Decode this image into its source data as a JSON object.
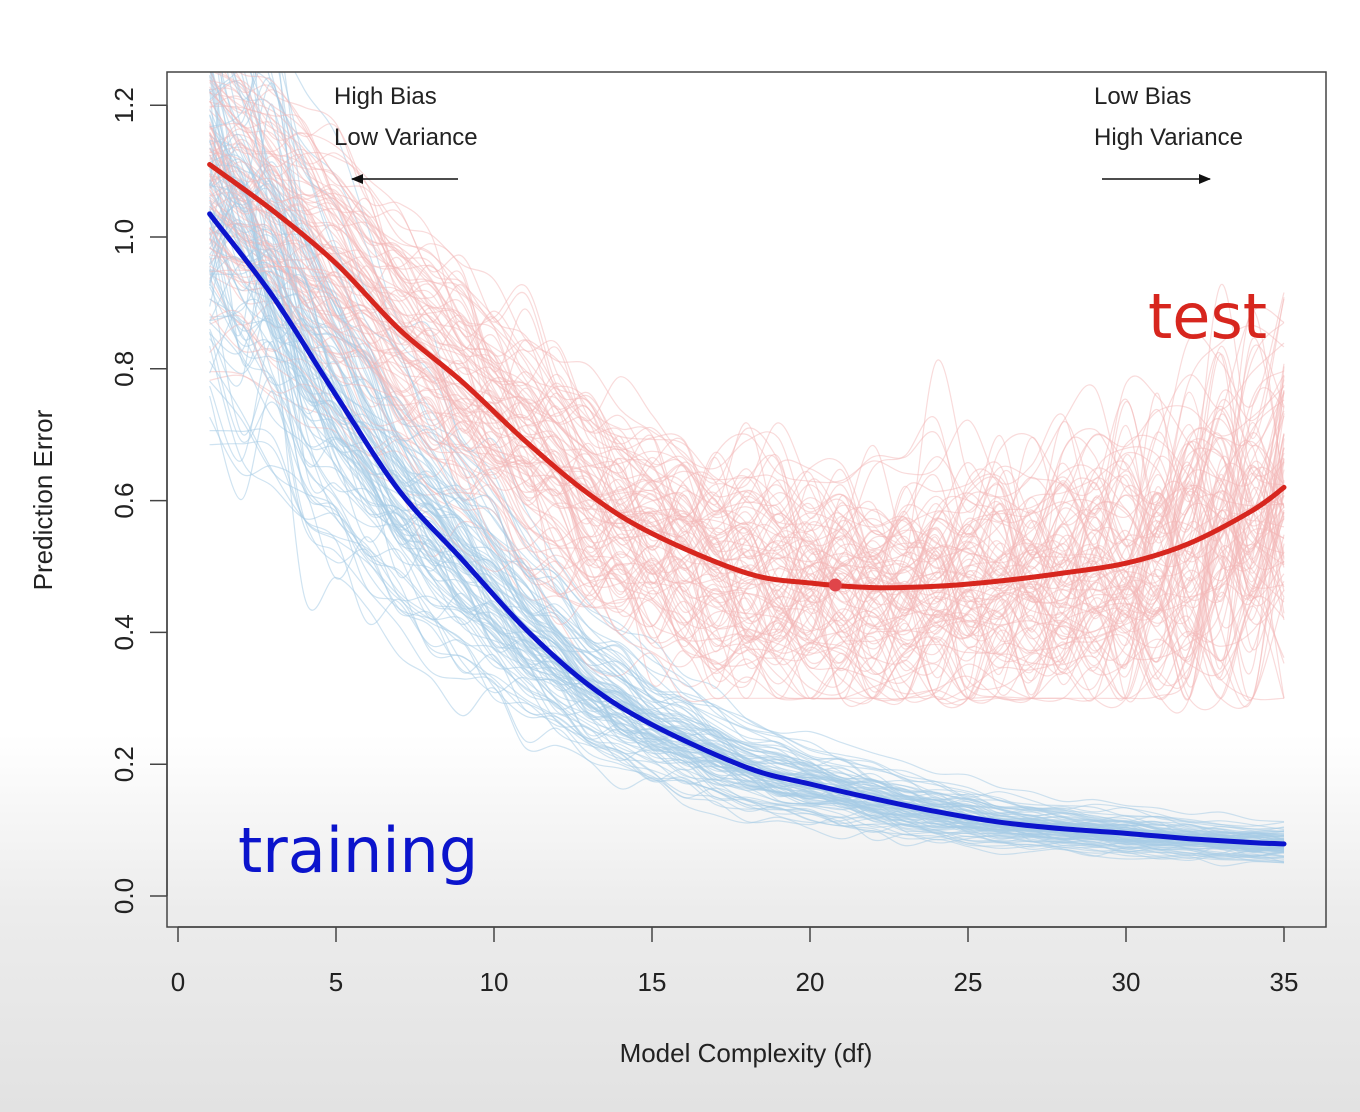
{
  "chart_data": {
    "type": "line",
    "xlabel": "Model Complexity (df)",
    "ylabel": "Prediction Error",
    "xlim": [
      0,
      35
    ],
    "ylim": [
      0,
      1.2
    ],
    "x_ticks": [
      "0",
      "5",
      "10",
      "15",
      "20",
      "25",
      "30",
      "35"
    ],
    "y_ticks": [
      "0.0",
      "0.2",
      "0.4",
      "0.6",
      "0.8",
      "1.0",
      "1.2"
    ],
    "x": [
      1,
      3,
      5,
      7,
      9,
      11,
      13,
      15,
      18,
      20,
      22,
      24,
      26,
      28,
      30,
      32,
      34,
      35
    ],
    "series": [
      {
        "name": "test",
        "color": "#d7261e",
        "values": [
          1.11,
          1.04,
          0.96,
          0.86,
          0.78,
          0.69,
          0.61,
          0.55,
          0.49,
          0.475,
          0.468,
          0.47,
          0.478,
          0.49,
          0.505,
          0.535,
          0.585,
          0.62
        ]
      },
      {
        "name": "training",
        "color": "#0b14cc",
        "values": [
          1.035,
          0.91,
          0.76,
          0.615,
          0.51,
          0.405,
          0.32,
          0.26,
          0.195,
          0.17,
          0.148,
          0.128,
          0.112,
          0.102,
          0.095,
          0.087,
          0.081,
          0.079
        ]
      }
    ],
    "minimum_point": {
      "x": 20.8,
      "y": 0.472
    },
    "background_curves": {
      "count_per_series": 100,
      "test_color": "#f3b8b8",
      "training_color": "#a8cce6"
    },
    "annotations": {
      "left_line1": "High Bias",
      "left_line2": "Low Variance",
      "right_line1": "Low Bias",
      "right_line2": "High Variance"
    },
    "grid": false,
    "legend": "inline labels"
  }
}
